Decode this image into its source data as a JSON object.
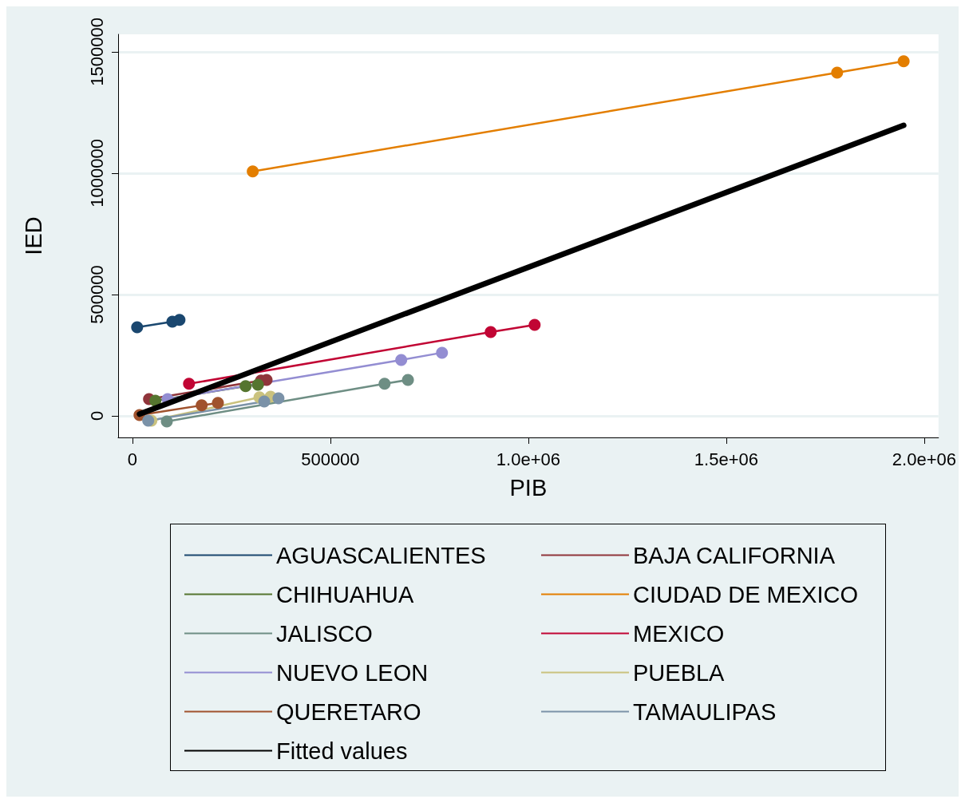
{
  "chart_data": {
    "type": "line",
    "xlabel": "PIB",
    "ylabel": "IED",
    "xlim": [
      -36000,
      2036000
    ],
    "ylim": [
      -89000,
      1572000
    ],
    "xticks": [
      0,
      500000,
      {
        "value": 1000000,
        "label": "1.0e+06"
      },
      {
        "value": 1500000,
        "label": "1.5e+06"
      },
      {
        "value": 2000000,
        "label": "2.0e+06"
      }
    ],
    "yticks": [
      0,
      500000,
      1000000,
      1500000
    ],
    "grid": "y",
    "legend": "bottom",
    "marker": "circle",
    "line_style": "solid",
    "series": [
      {
        "name": "AGUASCALIENTES",
        "color": "#1a476f",
        "x": [
          12000,
          101000,
          119000
        ],
        "values": [
          365000,
          388000,
          395000
        ]
      },
      {
        "name": "BAJA CALIFORNIA",
        "color": "#90353b",
        "x": [
          42000,
          325000,
          339000
        ],
        "values": [
          69000,
          145000,
          148000
        ]
      },
      {
        "name": "CHIHUAHUA",
        "color": "#55752f",
        "x": [
          58000,
          286000,
          317000
        ],
        "values": [
          62000,
          122000,
          128000
        ]
      },
      {
        "name": "CIUDAD DE MEXICO",
        "color": "#e37e00",
        "x": [
          304000,
          1780000,
          1948000
        ],
        "values": [
          1007000,
          1414000,
          1461000
        ]
      },
      {
        "name": "JALISCO",
        "color": "#6e8e84",
        "x": [
          87000,
          637000,
          696000
        ],
        "values": [
          -23000,
          132000,
          148000
        ]
      },
      {
        "name": "MEXICO",
        "color": "#c10534",
        "x": [
          143000,
          905000,
          1016000
        ],
        "values": [
          132000,
          345000,
          375000
        ]
      },
      {
        "name": "NUEVO LEON",
        "color": "#938dd2",
        "x": [
          89000,
          679000,
          782000
        ],
        "values": [
          69000,
          230000,
          260000
        ]
      },
      {
        "name": "PUEBLA",
        "color": "#cac27e",
        "x": [
          48000,
          321000,
          349000
        ],
        "values": [
          -20000,
          76000,
          79000
        ]
      },
      {
        "name": "QUERETARO",
        "color": "#a0522d",
        "x": [
          18000,
          175000,
          216000
        ],
        "values": [
          3000,
          43000,
          53000
        ]
      },
      {
        "name": "TAMAULIPAS",
        "color": "#7b92a8",
        "x": [
          40000,
          333000,
          369000
        ],
        "values": [
          -20000,
          59000,
          72000
        ]
      },
      {
        "name": "Fitted values",
        "type": "line",
        "marker": "none",
        "color": "#000000",
        "x": [
          18000,
          1948000
        ],
        "values": [
          7000,
          1197000
        ]
      }
    ]
  }
}
